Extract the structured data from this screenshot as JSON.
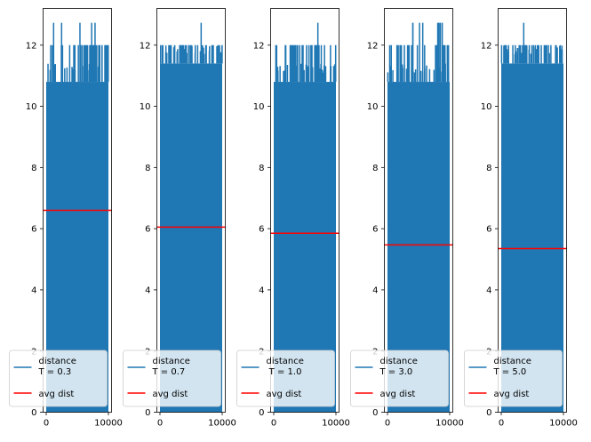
{
  "figure": {
    "background": "#ffffff"
  },
  "chart_data": [
    {
      "type": "line",
      "ylim": [
        0,
        13.2
      ],
      "xlim": [
        -500,
        10500
      ],
      "yticks": [
        0,
        2,
        4,
        6,
        8,
        10,
        12
      ],
      "ytick_labels": [
        "0",
        "2",
        "4",
        "6",
        "8",
        "10",
        "12"
      ],
      "xticks": [
        0,
        10000
      ],
      "xtick_labels": [
        "0",
        "10000"
      ],
      "grid": false,
      "legend_placement": "lower-left",
      "series": [
        {
          "name": "distance\nT = 0.3",
          "color": "#1f77b4",
          "x_range": [
            0,
            10000
          ],
          "y_min": 0,
          "y_max": 12.73,
          "dense_band": [
            0,
            10.8
          ],
          "peaks": [
            11.4,
            12.0,
            12.73
          ]
        },
        {
          "name": "avg dist",
          "color": "#ff0000",
          "y": 6.6
        }
      ],
      "legend": [
        "distance\nT = 0.3",
        "avg dist"
      ]
    },
    {
      "type": "line",
      "ylim": [
        0,
        13.2
      ],
      "xlim": [
        -500,
        10500
      ],
      "yticks": [
        0,
        2,
        4,
        6,
        8,
        10,
        12
      ],
      "ytick_labels": [
        "0",
        "2",
        "4",
        "6",
        "8",
        "10",
        "12"
      ],
      "xticks": [
        0,
        10000
      ],
      "xtick_labels": [
        "0",
        "10000"
      ],
      "grid": false,
      "legend_placement": "lower-left",
      "series": [
        {
          "name": "distance\nT = 0.7",
          "color": "#1f77b4",
          "x_range": [
            0,
            10000
          ],
          "y_min": 0,
          "y_max": 12.73,
          "dense_band": [
            0,
            11.4
          ],
          "peaks": [
            12.0,
            12.73
          ]
        },
        {
          "name": "avg dist",
          "color": "#ff0000",
          "y": 6.05
        }
      ],
      "legend": [
        "distance\nT = 0.7",
        "avg dist"
      ]
    },
    {
      "type": "line",
      "ylim": [
        0,
        13.2
      ],
      "xlim": [
        -500,
        10500
      ],
      "yticks": [
        0,
        2,
        4,
        6,
        8,
        10,
        12
      ],
      "ytick_labels": [
        "0",
        "2",
        "4",
        "6",
        "8",
        "10",
        "12"
      ],
      "xticks": [
        0,
        10000
      ],
      "xtick_labels": [
        "0",
        "10000"
      ],
      "grid": false,
      "legend_placement": "lower-left",
      "series": [
        {
          "name": "distance\n T = 1.0",
          "color": "#1f77b4",
          "x_range": [
            0,
            10000
          ],
          "y_min": 0,
          "y_max": 12.73,
          "dense_band": [
            0,
            10.8
          ],
          "peaks": [
            11.4,
            12.0,
            12.73
          ]
        },
        {
          "name": "avg dist",
          "color": "#ff0000",
          "y": 5.85
        }
      ],
      "legend": [
        "distance\n T = 1.0",
        "avg dist"
      ]
    },
    {
      "type": "line",
      "ylim": [
        0,
        13.2
      ],
      "xlim": [
        -500,
        10500
      ],
      "yticks": [
        0,
        2,
        4,
        6,
        8,
        10,
        12
      ],
      "ytick_labels": [
        "0",
        "2",
        "4",
        "6",
        "8",
        "10",
        "12"
      ],
      "xticks": [
        0,
        10000
      ],
      "xtick_labels": [
        "0",
        "10000"
      ],
      "grid": false,
      "legend_placement": "lower-left",
      "series": [
        {
          "name": "distance\nT = 3.0",
          "color": "#1f77b4",
          "x_range": [
            0,
            10000
          ],
          "y_min": 0,
          "y_max": 12.73,
          "dense_band": [
            0,
            10.8
          ],
          "peaks": [
            11.4,
            12.0,
            12.73
          ]
        },
        {
          "name": "avg dist",
          "color": "#ff0000",
          "y": 5.47
        }
      ],
      "legend": [
        "distance\nT = 3.0",
        "avg dist"
      ]
    },
    {
      "type": "line",
      "ylim": [
        0,
        13.2
      ],
      "xlim": [
        -500,
        10500
      ],
      "yticks": [
        0,
        2,
        4,
        6,
        8,
        10,
        12
      ],
      "ytick_labels": [
        "0",
        "2",
        "4",
        "6",
        "8",
        "10",
        "12"
      ],
      "xticks": [
        0,
        10000
      ],
      "xtick_labels": [
        "0",
        "10000"
      ],
      "grid": false,
      "legend_placement": "lower-left",
      "series": [
        {
          "name": "distance\nT = 5.0",
          "color": "#1f77b4",
          "x_range": [
            0,
            10000
          ],
          "y_min": 0,
          "y_max": 12.73,
          "dense_band": [
            0,
            11.4
          ],
          "peaks": [
            12.0,
            12.73
          ]
        },
        {
          "name": "avg dist",
          "color": "#ff0000",
          "y": 5.35
        }
      ],
      "legend": [
        "distance\nT = 5.0",
        "avg dist"
      ]
    }
  ]
}
